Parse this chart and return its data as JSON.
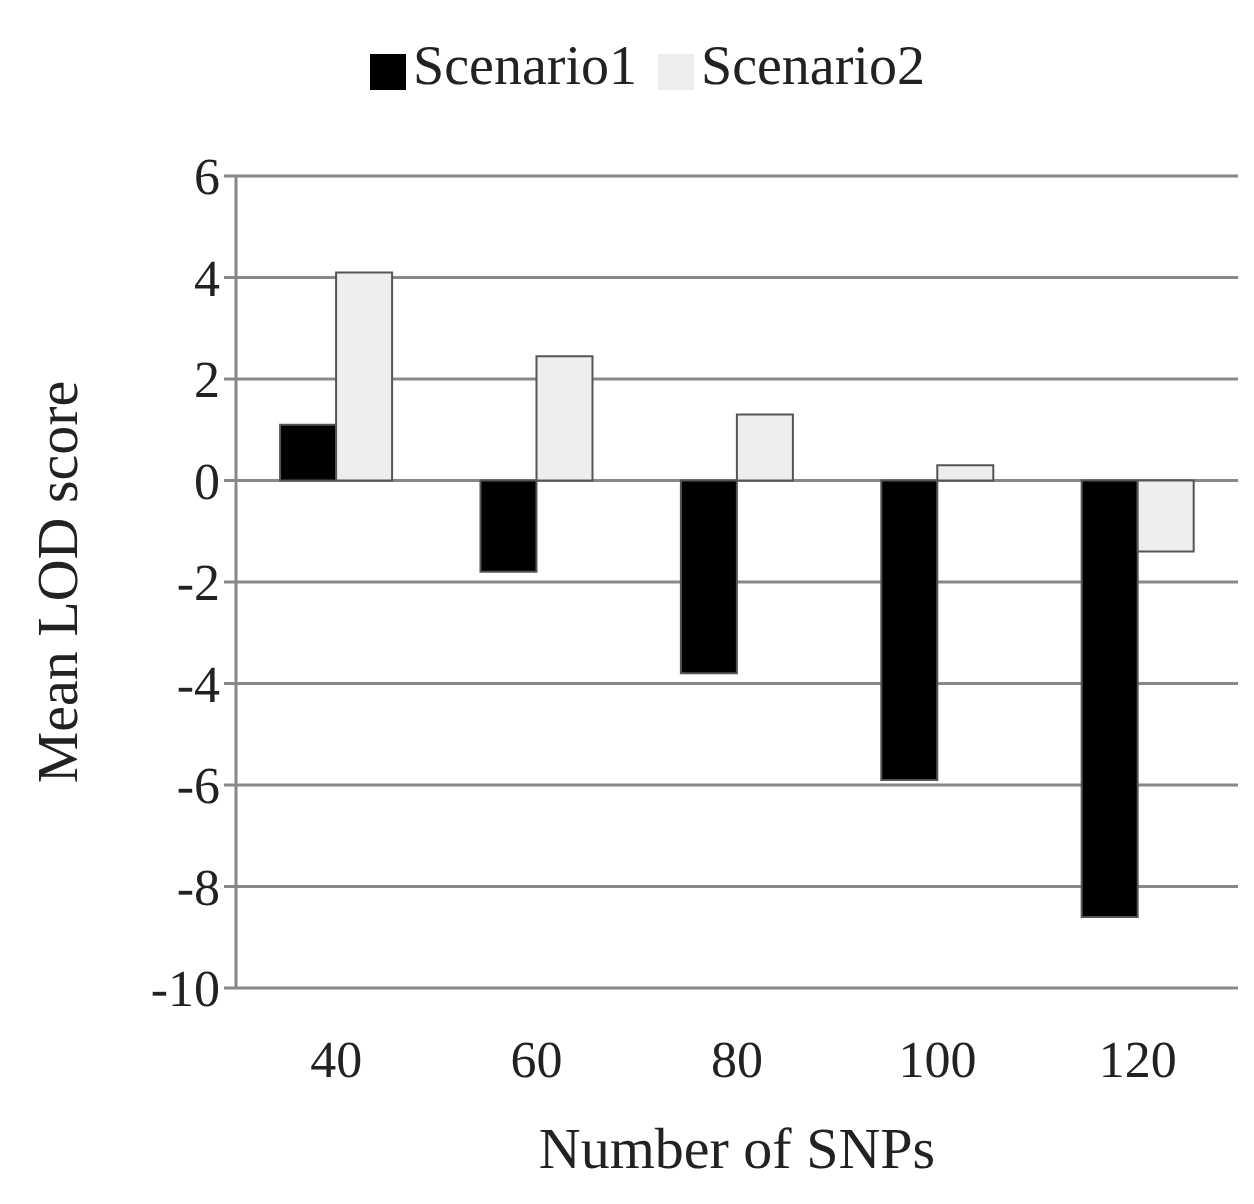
{
  "chart_data": {
    "type": "bar",
    "xlabel": "Number of  SNPs",
    "ylabel": "Mean LOD score",
    "categories": [
      "40",
      "60",
      "80",
      "100",
      "120"
    ],
    "series": [
      {
        "name": "Scenario1",
        "color": "#000000",
        "values": [
          1.1,
          -1.8,
          -3.8,
          -5.9,
          -8.6
        ]
      },
      {
        "name": "Scenario2",
        "color": "#eeeeee",
        "values": [
          4.1,
          2.45,
          1.3,
          0.3,
          -1.4
        ]
      }
    ],
    "ylim": [
      -10,
      6
    ],
    "yticks": [
      -10,
      -8,
      -6,
      -4,
      -2,
      0,
      2,
      4,
      6
    ],
    "grid": "y",
    "legend": "top"
  }
}
